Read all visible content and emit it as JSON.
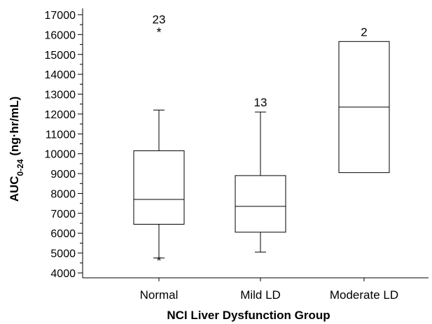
{
  "chart_data": {
    "type": "box",
    "title": "",
    "xlabel": "NCI Liver Dysfunction Group",
    "ylabel_main": "AUC",
    "ylabel_sub": "0-24",
    "ylabel_rest": " (ng·hr/mL)",
    "ylim": [
      3800,
      17300
    ],
    "yticks": [
      4000,
      5000,
      6000,
      7000,
      8000,
      9000,
      10000,
      11000,
      12000,
      13000,
      14000,
      15000,
      16000,
      17000
    ],
    "ytick_labels": [
      "4000",
      "5000",
      "6000",
      "7000",
      "8000",
      "9000",
      "10000",
      "11000",
      "12000",
      "13000",
      "14000",
      "15000",
      "16000",
      "17000"
    ],
    "grid": false,
    "categories": [
      "Normal",
      "Mild LD",
      "Moderate LD"
    ],
    "boxes": [
      {
        "category": "Normal",
        "whisker_low": 4750,
        "q1": 6450,
        "median": 7700,
        "q3": 10150,
        "whisker_high": 12200,
        "n_label": "23",
        "outliers": [
          16200,
          4700
        ],
        "outlier_marker": "*"
      },
      {
        "category": "Mild LD",
        "whisker_low": 5050,
        "q1": 6050,
        "median": 7350,
        "q3": 8900,
        "whisker_high": 12100,
        "n_label": "13",
        "outliers": []
      },
      {
        "category": "Moderate LD",
        "q1": 9050,
        "median": 12350,
        "q3": 15650,
        "n_label": "2",
        "outliers": []
      }
    ]
  }
}
